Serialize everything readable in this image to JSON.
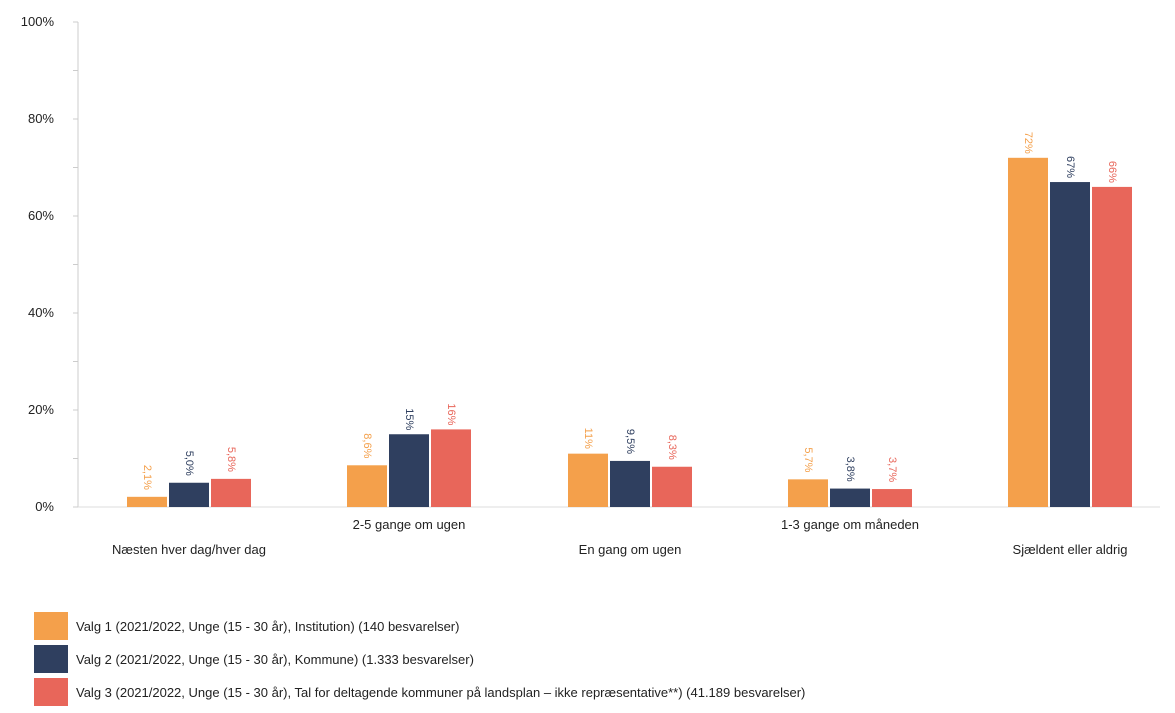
{
  "chart_data": {
    "type": "bar",
    "categories": [
      "Næsten hver dag/hver dag",
      "2-5 gange om ugen",
      "En gang om ugen",
      "1-3 gange om måneden",
      "Sjældent eller aldrig"
    ],
    "series": [
      {
        "name": "Valg 1 (2021/2022, Unge (15 - 30 år), Institution) (140 besvarelser)",
        "color": "#F4A04B",
        "values": [
          2.1,
          8.6,
          11,
          5.7,
          72
        ],
        "labels": [
          "2,1%",
          "8,6%",
          "11%",
          "5,7%",
          "72%"
        ]
      },
      {
        "name": "Valg 2 (2021/2022, Unge (15 - 30 år), Kommune) (1.333 besvarelser)",
        "color": "#2F3F5F",
        "values": [
          5.0,
          15,
          9.5,
          3.8,
          67
        ],
        "labels": [
          "5,0%",
          "15%",
          "9,5%",
          "3,8%",
          "67%"
        ]
      },
      {
        "name": "Valg 3 (2021/2022, Unge (15 - 30 år), Tal for deltagende kommuner på landsplan – ikke repræsentative**) (41.189 besvarelser)",
        "color": "#E8665A",
        "values": [
          5.8,
          16,
          8.3,
          3.7,
          66
        ],
        "labels": [
          "5,8%",
          "16%",
          "8,3%",
          "3,7%",
          "66%"
        ]
      }
    ],
    "y_ticks": [
      0,
      20,
      40,
      60,
      80,
      100
    ],
    "y_tick_labels": [
      "0%",
      "20%",
      "40%",
      "60%",
      "80%",
      "100%"
    ],
    "ylim": [
      0,
      100
    ],
    "grid": false,
    "legend_position": "bottom"
  }
}
